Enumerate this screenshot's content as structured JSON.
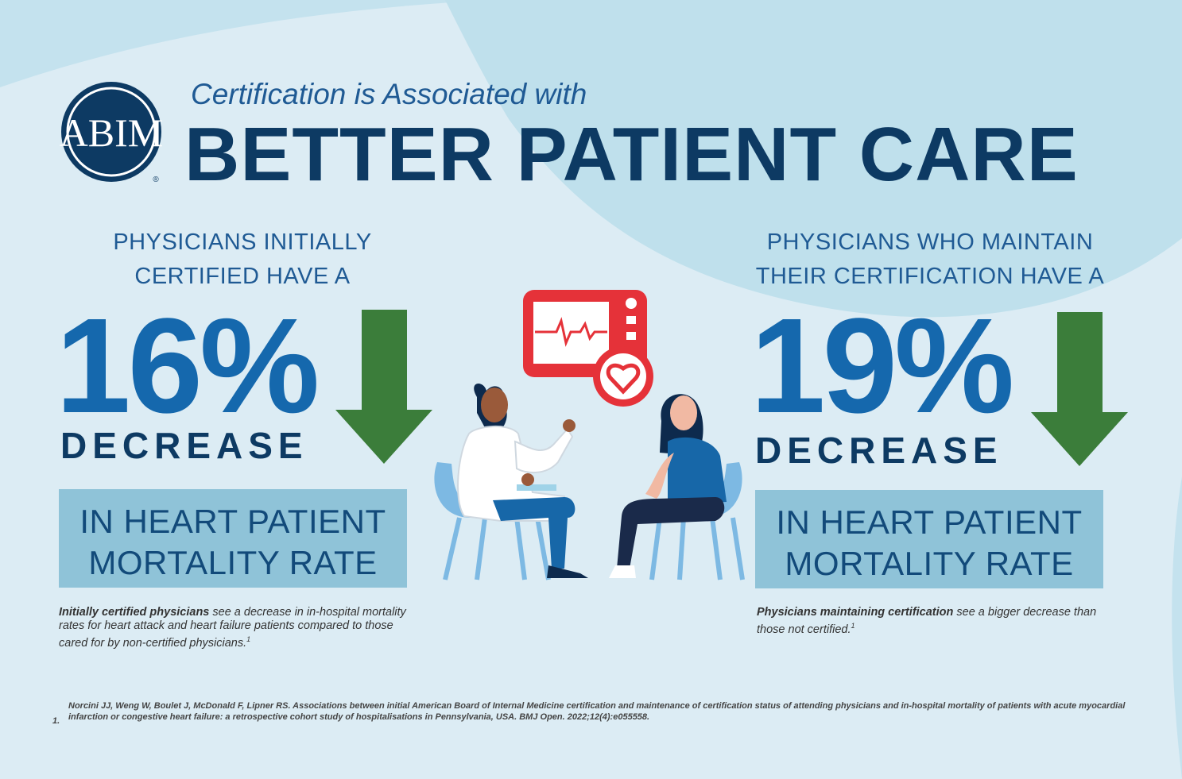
{
  "logo": {
    "text": "ABIM",
    "mark": "®"
  },
  "header": {
    "subtitle": "Certification is Associated with",
    "title": "BETTER PATIENT CARE"
  },
  "left": {
    "intro_line1": "PHYSICIANS INITIALLY",
    "intro_line2": "CERTIFIED HAVE A",
    "percent": "16%",
    "decrease": "DECREASE",
    "box_line1": "IN HEART PATIENT",
    "box_line2": "MORTALITY RATE",
    "note_bold": "Initially certified physicians",
    "note_rest": " see a decrease in in-hospital mortality rates for heart attack and heart failure patients compared to those cared for by non-certified physicians.",
    "note_sup": "1"
  },
  "right": {
    "intro_line1": "PHYSICIANS WHO MAINTAIN",
    "intro_line2": "THEIR CERTIFICATION HAVE A",
    "percent": "19%",
    "decrease": "DECREASE",
    "box_line1": "IN HEART PATIENT",
    "box_line2": "MORTALITY RATE",
    "note_bold": "Physicians maintaining certification",
    "note_rest": " see a bigger decrease than those not certified.",
    "note_sup": "1"
  },
  "footnote": {
    "number": "1.",
    "text": "Norcini JJ, Weng W, Boulet J, McDonald F, Lipner RS. Associations between initial American Board of Internal Medicine certification and maintenance of certification status of attending physicians and in-hospital mortality of patients with acute myocardial infarction or congestive heart failure: a retrospective cohort study of hospitalisations in Pennsylvania, USA. BMJ Open. 2022;12(4):e055558."
  },
  "colors": {
    "background": "#dcecf4",
    "wave": "#bfe0ec",
    "navy": "#0d3a63",
    "blue": "#1568ad",
    "arrow_green": "#3b7d3a",
    "box": "#8fc3d8",
    "monitor_red": "#e53239"
  }
}
